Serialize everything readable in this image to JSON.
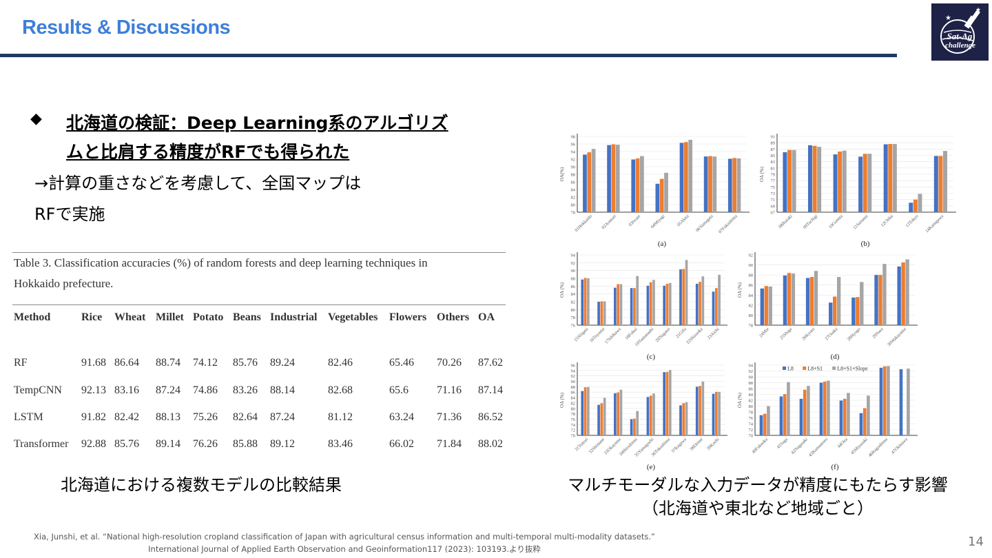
{
  "header": {
    "title": "Results & Discussions",
    "logo_text": "Sat-Ag Challenge"
  },
  "bullet": {
    "icon": "diamond-icon",
    "glyph": "◆",
    "line1": "北海道の検証：Deep Learning系のアルゴリズ",
    "line2": "ムと比肩する精度がRFでも得られた"
  },
  "note": {
    "line1": "→計算の重さなどを考慮して、全国マップは",
    "line2": "RFで実施"
  },
  "table": {
    "caption_line1": "Table 3. Classification accuracies (%) of random forests and deep learning techniques in",
    "caption_line2": "Hokkaido prefecture.",
    "headers": [
      "Method",
      "Rice",
      "Wheat",
      "Millet",
      "Potato",
      "Beans",
      "Industrial",
      "Vegetables",
      "Flowers",
      "Others",
      "OA"
    ],
    "rows": [
      [
        "RF",
        "91.68",
        "86.64",
        "88.74",
        "74.12",
        "85.76",
        "89.24",
        "82.46",
        "65.46",
        "70.26",
        "87.62"
      ],
      [
        "TempCNN",
        "92.13",
        "83.16",
        "87.24",
        "74.86",
        "83.26",
        "88.14",
        "82.68",
        "65.6",
        "71.16",
        "87.14"
      ],
      [
        "LSTM",
        "91.82",
        "82.42",
        "88.13",
        "75.26",
        "82.64",
        "87.24",
        "81.12",
        "63.24",
        "71.36",
        "86.52"
      ],
      [
        "Transformer",
        "92.88",
        "85.76",
        "89.14",
        "76.26",
        "85.88",
        "89.12",
        "83.46",
        "66.02",
        "71.84",
        "88.02"
      ]
    ]
  },
  "captions": {
    "left": "北海道における複数モデルの比較結果",
    "right_line1": "マルチモーダルな入力データが精度にもたらす影響",
    "right_line2": "（北海道や東北など地域ごと）"
  },
  "footer": {
    "line1": "Xia, Junshi, et al. “National high-resolution cropland classification of Japan with agricultural census information and multi-temporal multi-modality datasets.”",
    "line2": "International Journal of Applied Earth Observation and Geoinformation117 (2023): 103193.より抜粋"
  },
  "page_number": "14",
  "chart_data": [
    {
      "type": "bar",
      "panel": "(a)",
      "ylabel": "OA(%)",
      "ylim": [
        78,
        98
      ],
      "ystep": 2,
      "colors": [
        "#4472c4",
        "#ed7d31",
        "#a5a5a5"
      ],
      "categories": [
        "01Hokkaido",
        "02Aomori",
        "03Iwate",
        "04Miyagi",
        "05Akita",
        "06Yamagata",
        "07Fukushima"
      ],
      "series": [
        {
          "values": [
            93.2,
            95.7,
            91.9,
            85.5,
            96.3,
            92.7,
            92.1
          ]
        },
        {
          "values": [
            93.8,
            95.9,
            92.2,
            86.8,
            96.5,
            92.8,
            92.3
          ]
        },
        {
          "values": [
            94.7,
            95.8,
            92.8,
            88.4,
            97.1,
            92.7,
            92.2
          ]
        }
      ]
    },
    {
      "type": "bar",
      "panel": "(b)",
      "ylabel": "OA (%)",
      "ylim": [
        67,
        91
      ],
      "ystep": 2,
      "colors": [
        "#4472c4",
        "#ed7d31",
        "#a5a5a5"
      ],
      "categories": [
        "08Ibaraki",
        "09Tochigi",
        "10Gunma",
        "11Saitama",
        "12Chiba",
        "13Tokyo",
        "14Kanagawa"
      ],
      "series": [
        {
          "values": [
            86,
            88.2,
            85.3,
            84.6,
            88.5,
            70,
            84.8
          ]
        },
        {
          "values": [
            86.7,
            88,
            86.2,
            85.5,
            88.6,
            71,
            84.8
          ]
        },
        {
          "values": [
            86.7,
            87.7,
            86.5,
            85.5,
            88.6,
            72.8,
            86.4
          ]
        }
      ]
    },
    {
      "type": "bar",
      "panel": "(c)",
      "ylabel": "OA (%)",
      "ylim": [
        76,
        94
      ],
      "ystep": 2,
      "colors": [
        "#4472c4",
        "#ed7d31",
        "#a5a5a5"
      ],
      "categories": [
        "15Niigata",
        "16Toyama",
        "17Ishikawa",
        "18Fukui",
        "19Yamanashi",
        "20Nagano",
        "21Gifu",
        "22Shizuoka",
        "23Aichi"
      ],
      "series": [
        {
          "values": [
            87.7,
            82,
            85.6,
            85.5,
            86.1,
            86.1,
            90.3,
            86.6,
            84.6
          ]
        },
        {
          "values": [
            88.1,
            82.1,
            86.5,
            85.5,
            87,
            86.6,
            90.4,
            87.1,
            85.5
          ]
        },
        {
          "values": [
            88,
            82.1,
            86.5,
            88.6,
            87.6,
            86.8,
            92.7,
            88.5,
            88.9
          ]
        }
      ]
    },
    {
      "type": "bar",
      "panel": "(d)",
      "ylabel": "OA (%)",
      "ylim": [
        78,
        92
      ],
      "ystep": 2,
      "colors": [
        "#4472c4",
        "#ed7d31",
        "#a5a5a5"
      ],
      "categories": [
        "24Mie",
        "25Shiga",
        "26Kyoto",
        "27Osaka",
        "28Hyogo",
        "29Nara",
        "30Wakayama"
      ],
      "series": [
        {
          "values": [
            85.3,
            87.9,
            87.4,
            82.5,
            83.5,
            88,
            89.7
          ]
        },
        {
          "values": [
            85.8,
            88.4,
            87.6,
            83.7,
            83.6,
            88,
            90.5
          ]
        },
        {
          "values": [
            85.7,
            88.3,
            88.8,
            87.6,
            86.6,
            90.2,
            91.1
          ]
        }
      ]
    },
    {
      "type": "bar",
      "panel": "(e)",
      "ylabel": "OA (%)",
      "ylim": [
        70,
        96
      ],
      "ystep": 2,
      "colors": [
        "#4472c4",
        "#ed7d31",
        "#a5a5a5"
      ],
      "categories": [
        "31Tottori",
        "32Shimane",
        "33Okayama",
        "34Hiroshima",
        "35Yamaguchi",
        "36Tokushima",
        "37Kagawa",
        "38Ehime",
        "39Kochi"
      ],
      "series": [
        {
          "values": [
            86.4,
            81.3,
            85.6,
            76,
            84.2,
            93.4,
            81.1,
            88,
            85.4
          ]
        },
        {
          "values": [
            87.8,
            81.9,
            85.9,
            76.2,
            84.7,
            93.5,
            81.9,
            88.3,
            86.1
          ]
        },
        {
          "values": [
            87.9,
            83.9,
            86.9,
            79,
            85.5,
            94.2,
            82.3,
            89.9,
            86.1
          ]
        }
      ]
    },
    {
      "type": "bar",
      "panel": "(f)",
      "ylabel": "OA (%)",
      "ylim": [
        70,
        94
      ],
      "ystep": 2,
      "colors": [
        "#4472c4",
        "#ed7d31",
        "#a5a5a5"
      ],
      "legend": "top",
      "categories": [
        "40Fukuoka",
        "41Saga",
        "42Nagasaki",
        "43Kumamoto",
        "44Oita",
        "45Miyazaki",
        "46Kagoshima",
        "47Okinawa"
      ],
      "series": [
        {
          "name": "L8",
          "values": [
            76.9,
            83.3,
            82.5,
            88,
            81.9,
            77.6,
            93.1,
            92.6
          ]
        },
        {
          "name": "L8+S1",
          "values": [
            77.4,
            84.1,
            85.6,
            88.4,
            82.5,
            79.3,
            93.6,
            null
          ]
        },
        {
          "name": "L8+S1+Slope",
          "values": [
            80,
            88.2,
            86.9,
            88.7,
            84.5,
            83.6,
            93.7,
            92.8
          ]
        }
      ]
    }
  ]
}
